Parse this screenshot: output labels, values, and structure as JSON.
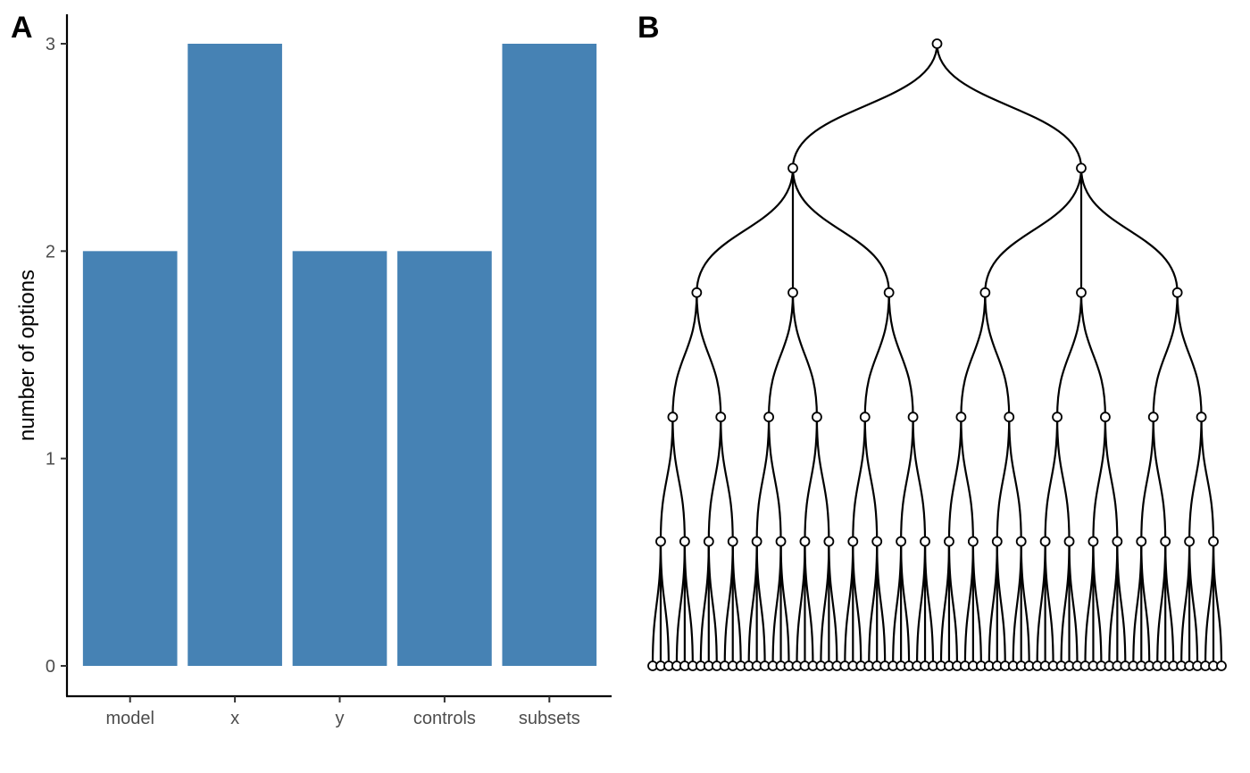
{
  "panel_a": {
    "letter": "A"
  },
  "panel_b": {
    "letter": "B"
  },
  "chart_data": [
    {
      "type": "bar",
      "title": "",
      "categories": [
        "model",
        "x",
        "y",
        "controls",
        "subsets"
      ],
      "values": [
        2,
        3,
        2,
        2,
        3
      ],
      "xlabel": "",
      "ylabel": "number of options",
      "ylim": [
        0,
        3
      ],
      "yticks": [
        0,
        1,
        2,
        3
      ],
      "bar_color": "#4682B4",
      "grid": false
    },
    {
      "type": "tree",
      "title": "",
      "branching_by_level": [
        2,
        3,
        2,
        2,
        3
      ],
      "nodes_per_level": [
        1,
        2,
        6,
        12,
        24,
        72
      ],
      "edge_color": "#000000",
      "node_fill": "#ffffff"
    }
  ]
}
